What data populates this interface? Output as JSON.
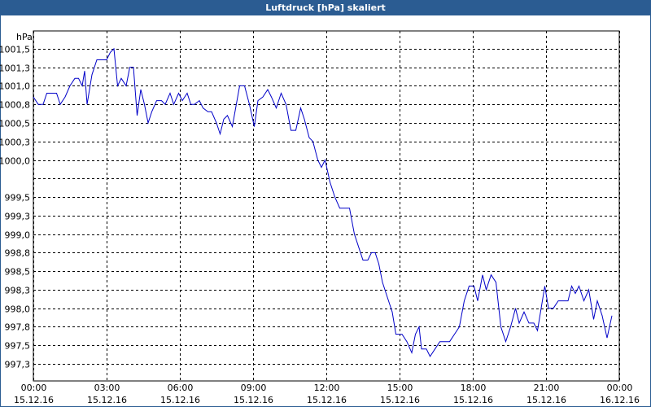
{
  "chart_data": {
    "type": "line",
    "title": "Luftdruck [hPa] skaliert",
    "y_unit": "hPa",
    "xlim": [
      0,
      24
    ],
    "xticks": [
      {
        "value": 0,
        "label": "00:00"
      },
      {
        "value": 3,
        "label": "03:00"
      },
      {
        "value": 6,
        "label": "06:00"
      },
      {
        "value": 9,
        "label": "09:00"
      },
      {
        "value": 12,
        "label": "12:00"
      },
      {
        "value": 15,
        "label": "15:00"
      },
      {
        "value": 18,
        "label": "18:00"
      },
      {
        "value": 21,
        "label": "21:00"
      },
      {
        "value": 24,
        "label": "00:00"
      }
    ],
    "xtick_dates": [
      "15.12.16",
      "15.12.16",
      "15.12.16",
      "15.12.16",
      "15.12.16",
      "15.12.16",
      "15.12.16",
      "15.12.16",
      "16.12.16"
    ],
    "ylim": [
      997.02,
      1001.74
    ],
    "yticks": [
      {
        "value": 997.25,
        "label": "997,3"
      },
      {
        "value": 997.5,
        "label": "997,5"
      },
      {
        "value": 997.75,
        "label": "997,8"
      },
      {
        "value": 998.0,
        "label": "998,0"
      },
      {
        "value": 998.25,
        "label": "998,3"
      },
      {
        "value": 998.5,
        "label": "998,5"
      },
      {
        "value": 998.75,
        "label": "998,8"
      },
      {
        "value": 999.0,
        "label": "999,0"
      },
      {
        "value": 999.25,
        "label": "999,3"
      },
      {
        "value": 999.5,
        "label": "999,5"
      },
      {
        "value": 999.75,
        "label": null
      },
      {
        "value": 1000.0,
        "label": "1000,0"
      },
      {
        "value": 1000.25,
        "label": "1000,3"
      },
      {
        "value": 1000.5,
        "label": "1000,5"
      },
      {
        "value": 1000.75,
        "label": "1000,8"
      },
      {
        "value": 1001.0,
        "label": "1001,0"
      },
      {
        "value": 1001.25,
        "label": "1001,3"
      },
      {
        "value": 1001.5,
        "label": "1001,5"
      }
    ],
    "grid": true,
    "series": [
      {
        "color": "#0000c8",
        "x": [
          0,
          0.2,
          0.4,
          0.55,
          0.75,
          0.95,
          1.1,
          1.3,
          1.5,
          1.7,
          1.85,
          2.0,
          2.1,
          2.2,
          2.4,
          2.6,
          2.8,
          3.0,
          3.15,
          3.3,
          3.45,
          3.6,
          3.8,
          3.95,
          4.1,
          4.25,
          4.4,
          4.55,
          4.7,
          4.85,
          5.05,
          5.25,
          5.4,
          5.6,
          5.75,
          5.95,
          6.1,
          6.3,
          6.45,
          6.6,
          6.8,
          6.95,
          7.15,
          7.3,
          7.5,
          7.65,
          7.8,
          7.95,
          8.15,
          8.45,
          8.65,
          8.85,
          9.05,
          9.2,
          9.4,
          9.6,
          9.75,
          9.95,
          10.15,
          10.35,
          10.55,
          10.75,
          10.95,
          11.1,
          11.3,
          11.45,
          11.65,
          11.8,
          11.95,
          12.15,
          12.35,
          12.55,
          12.75,
          12.95,
          13.15,
          13.35,
          13.5,
          13.7,
          13.85,
          14.0,
          14.15,
          14.3,
          14.5,
          14.7,
          14.85,
          15.1,
          15.3,
          15.5,
          15.65,
          15.8,
          15.9,
          16.1,
          16.25,
          16.45,
          16.65,
          16.85,
          17.05,
          17.25,
          17.45,
          17.65,
          17.85,
          18.05,
          18.2,
          18.4,
          18.55,
          18.75,
          18.95,
          19.15,
          19.35,
          19.55,
          19.75,
          19.9,
          20.1,
          20.3,
          20.5,
          20.65,
          20.95,
          21.1,
          21.3,
          21.5,
          21.7,
          21.9,
          22.05,
          22.2,
          22.35,
          22.55,
          22.75,
          22.95,
          23.1,
          23.3,
          23.5,
          23.7
        ],
        "values": [
          1000.85,
          1000.75,
          1000.75,
          1000.9,
          1000.9,
          1000.9,
          1000.75,
          1000.85,
          1001.0,
          1001.1,
          1001.1,
          1001.0,
          1001.2,
          1000.75,
          1001.15,
          1001.35,
          1001.35,
          1001.35,
          1001.45,
          1001.5,
          1001.0,
          1001.1,
          1001.0,
          1001.25,
          1001.25,
          1000.6,
          1000.95,
          1000.75,
          1000.5,
          1000.65,
          1000.8,
          1000.8,
          1000.75,
          1000.9,
          1000.75,
          1000.9,
          1000.8,
          1000.9,
          1000.75,
          1000.75,
          1000.8,
          1000.7,
          1000.65,
          1000.65,
          1000.5,
          1000.35,
          1000.55,
          1000.6,
          1000.45,
          1001.0,
          1001.0,
          1000.75,
          1000.45,
          1000.8,
          1000.85,
          1000.95,
          1000.85,
          1000.7,
          1000.9,
          1000.75,
          1000.4,
          1000.4,
          1000.7,
          1000.55,
          1000.3,
          1000.25,
          1000.0,
          999.9,
          1000.0,
          999.7,
          999.5,
          999.35,
          999.35,
          999.35,
          999.0,
          998.8,
          998.65,
          998.65,
          998.75,
          998.75,
          998.6,
          998.35,
          998.15,
          997.95,
          997.65,
          997.65,
          997.55,
          997.4,
          997.65,
          997.75,
          997.45,
          997.45,
          997.35,
          997.45,
          997.55,
          997.55,
          997.55,
          997.65,
          997.75,
          998.1,
          998.3,
          998.3,
          998.1,
          998.45,
          998.25,
          998.45,
          998.35,
          997.75,
          997.55,
          997.75,
          998.0,
          997.8,
          997.95,
          997.8,
          997.8,
          997.7,
          998.3,
          998.0,
          998.0,
          998.1,
          998.1,
          998.1,
          998.3,
          998.2,
          998.3,
          998.1,
          998.25,
          997.85,
          998.1,
          997.9,
          997.6,
          997.9
        ]
      }
    ]
  }
}
